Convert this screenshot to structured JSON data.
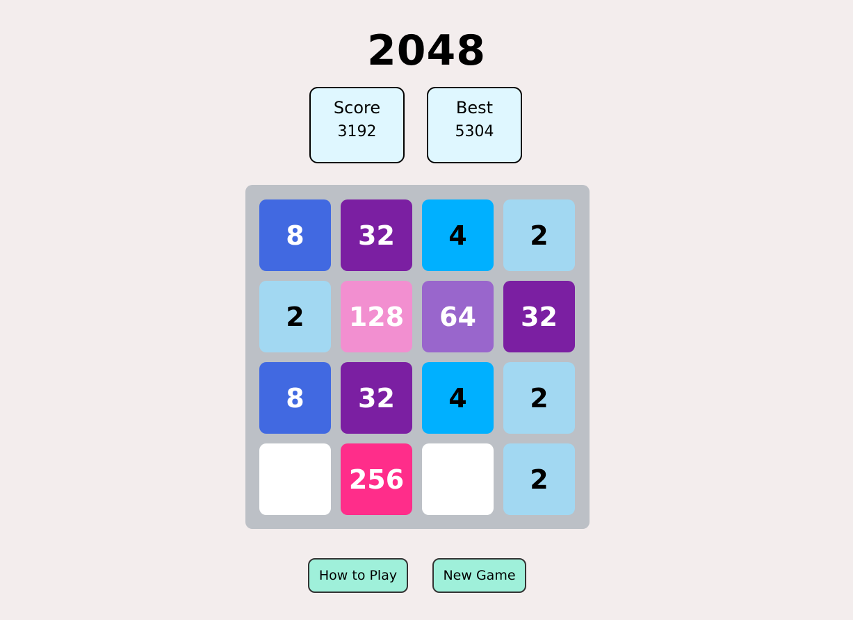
{
  "title": "2048",
  "score": {
    "label": "Score",
    "value": "3192"
  },
  "best": {
    "label": "Best",
    "value": "5304"
  },
  "board": [
    [
      "8",
      "32",
      "4",
      "2"
    ],
    [
      "2",
      "128",
      "64",
      "32"
    ],
    [
      "8",
      "32",
      "4",
      "2"
    ],
    [
      "",
      "256",
      "",
      "2"
    ]
  ],
  "tile_colors": {
    "": {
      "bg": "#ffffff",
      "fg": "#000000"
    },
    "2": {
      "bg": "#a2d8f2",
      "fg": "#000000"
    },
    "4": {
      "bg": "#00b0ff",
      "fg": "#000000"
    },
    "8": {
      "bg": "#4169e1",
      "fg": "#ffffff"
    },
    "32": {
      "bg": "#7b1fa2",
      "fg": "#ffffff"
    },
    "64": {
      "bg": "#9966cc",
      "fg": "#ffffff"
    },
    "128": {
      "bg": "#f28fd0",
      "fg": "#ffffff"
    },
    "256": {
      "bg": "#ff2d8a",
      "fg": "#ffffff"
    }
  },
  "buttons": {
    "how_to_play": "How to Play",
    "new_game": "New Game"
  }
}
